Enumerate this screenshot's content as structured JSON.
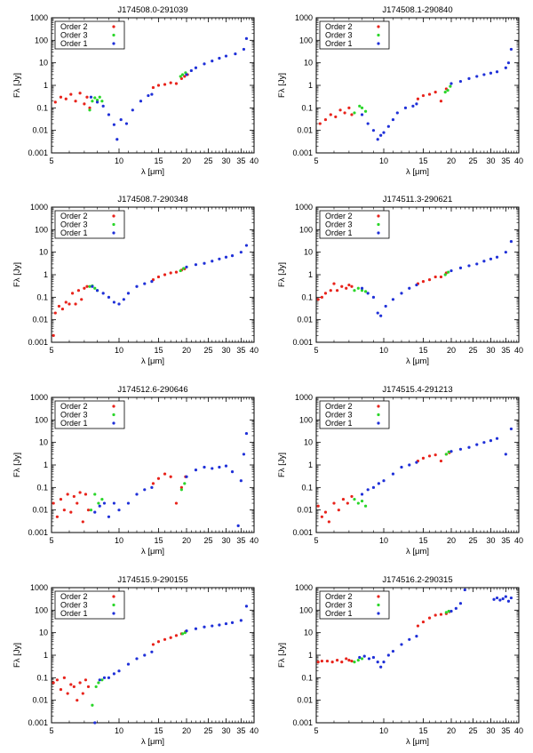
{
  "figure": {
    "legend_labels": [
      "Order 2",
      "Order 3",
      "Order 1"
    ],
    "legend_colors": [
      "#e8231b",
      "#2ad62a",
      "#1f30d8"
    ],
    "xlabel": "λ [μm]",
    "ylabel": "Fλ [Jy]",
    "x_ticks": [
      5,
      10,
      15,
      20,
      25,
      30,
      35,
      40
    ],
    "y_ticks": [
      "0.001",
      "0.01",
      "0.1",
      "1",
      "10",
      "100",
      "1000"
    ],
    "xscale": "log",
    "yscale": "log",
    "xlim": [
      5,
      40
    ],
    "ylim": [
      0.001,
      1000
    ]
  },
  "chart_data": [
    {
      "type": "scatter",
      "title": "J174508.0-291039",
      "series": [
        {
          "name": "Order 2",
          "color": "#e8231b",
          "x": [
            5.2,
            5.5,
            5.8,
            6.1,
            6.4,
            6.7,
            7.0,
            7.2,
            7.4,
            14.2,
            15.0,
            16.0,
            17.0,
            18.0,
            19.0,
            19.6,
            20.2
          ],
          "y": [
            0.18,
            0.3,
            0.25,
            0.4,
            0.2,
            0.45,
            0.15,
            0.3,
            0.1,
            0.8,
            1.0,
            1.1,
            1.3,
            1.2,
            2.0,
            2.5,
            3.0
          ]
        },
        {
          "name": "Order 3",
          "color": "#2ad62a",
          "x": [
            7.4,
            7.6,
            7.8,
            8.0,
            8.2,
            8.4,
            18.8,
            19.2,
            19.8
          ],
          "y": [
            0.08,
            0.2,
            0.28,
            0.22,
            0.3,
            0.2,
            2.5,
            3.0,
            3.6
          ]
        },
        {
          "name": "Order 1",
          "color": "#1f30d8",
          "x": [
            7.5,
            8.0,
            8.5,
            9.0,
            9.5,
            9.8,
            10.2,
            10.8,
            11.5,
            12.5,
            13.5,
            14.0,
            20.0,
            21.0,
            22.0,
            24.0,
            26.0,
            28.0,
            30.0,
            33.0,
            36.0,
            37.0
          ],
          "y": [
            0.3,
            0.18,
            0.12,
            0.05,
            0.018,
            0.004,
            0.03,
            0.02,
            0.08,
            0.2,
            0.35,
            0.4,
            3.0,
            4.5,
            6,
            9,
            12,
            16,
            20,
            25,
            40,
            120
          ]
        }
      ]
    },
    {
      "type": "scatter",
      "title": "J174508.1-290840",
      "series": [
        {
          "name": "Order 2",
          "color": "#e8231b",
          "x": [
            5.2,
            5.5,
            5.8,
            6.1,
            6.4,
            6.7,
            7.0,
            7.2,
            14.2,
            15.0,
            16.0,
            17.0,
            18.0,
            19.0
          ],
          "y": [
            0.02,
            0.03,
            0.05,
            0.04,
            0.08,
            0.06,
            0.1,
            0.05,
            0.25,
            0.35,
            0.4,
            0.5,
            0.2,
            0.7
          ]
        },
        {
          "name": "Order 3",
          "color": "#2ad62a",
          "x": [
            7.4,
            7.8,
            8.0,
            8.3,
            18.8,
            19.3,
            19.8
          ],
          "y": [
            0.06,
            0.12,
            0.1,
            0.07,
            0.5,
            0.6,
            0.9
          ]
        },
        {
          "name": "Order 1",
          "color": "#1f30d8",
          "x": [
            8.0,
            8.5,
            9.0,
            9.4,
            9.7,
            10.0,
            10.5,
            11.0,
            11.5,
            12.5,
            13.5,
            14.0,
            20.0,
            22.0,
            24.0,
            26.0,
            28.0,
            30.0,
            32.0,
            35.0,
            36.0,
            37.0
          ],
          "y": [
            0.05,
            0.02,
            0.01,
            0.004,
            0.006,
            0.008,
            0.015,
            0.03,
            0.06,
            0.1,
            0.12,
            0.15,
            1.2,
            1.5,
            2,
            2.5,
            3,
            3.5,
            4,
            6,
            10,
            40
          ]
        }
      ]
    },
    {
      "type": "scatter",
      "title": "J174508.7-290348",
      "series": [
        {
          "name": "Order 2",
          "color": "#e8231b",
          "x": [
            5.1,
            5.2,
            5.4,
            5.6,
            5.8,
            6.0,
            6.2,
            6.4,
            6.6,
            6.8,
            7.0,
            7.2,
            14.2,
            15.0,
            16.0,
            17.0,
            18.0,
            19.0,
            19.6
          ],
          "y": [
            0.002,
            0.02,
            0.04,
            0.03,
            0.06,
            0.05,
            0.15,
            0.05,
            0.2,
            0.08,
            0.25,
            0.3,
            0.6,
            0.8,
            1.0,
            1.2,
            1.3,
            1.6,
            1.8
          ]
        },
        {
          "name": "Order 3",
          "color": "#2ad62a",
          "x": [
            7.4,
            7.6,
            7.8,
            8.0,
            18.8,
            19.4
          ],
          "y": [
            0.3,
            0.32,
            0.25,
            0.2,
            1.5,
            1.9
          ]
        },
        {
          "name": "Order 1",
          "color": "#1f30d8",
          "x": [
            7.6,
            8.0,
            8.5,
            9.0,
            9.5,
            10.0,
            10.5,
            11.0,
            12.0,
            13.0,
            14.0,
            20.0,
            22.0,
            24.0,
            26.0,
            28.0,
            30.0,
            32.0,
            35.0,
            37.0
          ],
          "y": [
            0.3,
            0.2,
            0.15,
            0.1,
            0.06,
            0.05,
            0.08,
            0.15,
            0.3,
            0.4,
            0.5,
            2.2,
            2.8,
            3.2,
            4,
            5,
            6,
            7,
            10,
            20
          ]
        }
      ]
    },
    {
      "type": "scatter",
      "title": "J174511.3-290621",
      "series": [
        {
          "name": "Order 2",
          "color": "#e8231b",
          "x": [
            5.1,
            5.3,
            5.5,
            5.8,
            6.0,
            6.2,
            6.5,
            6.8,
            7.0,
            7.2,
            14.2,
            15.0,
            16.0,
            17.0,
            18.0,
            19.0
          ],
          "y": [
            0.08,
            0.1,
            0.15,
            0.2,
            0.4,
            0.2,
            0.3,
            0.25,
            0.35,
            0.3,
            0.4,
            0.5,
            0.6,
            0.8,
            0.8,
            1.2
          ]
        },
        {
          "name": "Order 3",
          "color": "#2ad62a",
          "x": [
            7.4,
            7.7,
            8.0,
            8.3,
            18.8,
            19.4
          ],
          "y": [
            0.2,
            0.25,
            0.2,
            0.18,
            1.0,
            1.3
          ]
        },
        {
          "name": "Order 1",
          "color": "#1f30d8",
          "x": [
            8.0,
            8.5,
            9.0,
            9.4,
            9.7,
            10.2,
            11.0,
            12.0,
            13.0,
            14.0,
            20.0,
            22.0,
            24.0,
            26.0,
            28.0,
            30.0,
            32.0,
            35.0,
            37.0
          ],
          "y": [
            0.25,
            0.15,
            0.1,
            0.02,
            0.015,
            0.04,
            0.08,
            0.15,
            0.25,
            0.35,
            1.5,
            2.0,
            2.5,
            3,
            4,
            5,
            6,
            10,
            30
          ]
        }
      ]
    },
    {
      "type": "scatter",
      "title": "J174512.6-290646",
      "series": [
        {
          "name": "Order 2",
          "color": "#e8231b",
          "x": [
            5.1,
            5.3,
            5.5,
            5.7,
            5.9,
            6.1,
            6.3,
            6.5,
            6.7,
            6.9,
            7.1,
            7.3,
            14.2,
            15.0,
            16.0,
            17.0,
            18.0,
            19.0,
            19.8
          ],
          "y": [
            0.02,
            0.005,
            0.03,
            0.01,
            0.05,
            0.008,
            0.04,
            0.02,
            0.06,
            0.003,
            0.05,
            0.01,
            0.15,
            0.25,
            0.4,
            0.3,
            0.02,
            0.1,
            0.3
          ]
        },
        {
          "name": "Order 3",
          "color": "#2ad62a",
          "x": [
            7.5,
            7.8,
            8.1,
            8.4,
            19.0,
            19.6
          ],
          "y": [
            0.01,
            0.05,
            0.02,
            0.03,
            0.08,
            0.15
          ]
        },
        {
          "name": "Order 1",
          "color": "#1f30d8",
          "x": [
            7.8,
            8.2,
            8.6,
            9.0,
            9.5,
            10.0,
            11.0,
            12.0,
            13.0,
            14.0,
            20.0,
            22.0,
            24.0,
            26.0,
            28.0,
            30.0,
            32.0,
            34.0,
            35.0,
            36.0,
            37.0
          ],
          "y": [
            0.008,
            0.015,
            0.02,
            0.005,
            0.02,
            0.01,
            0.02,
            0.05,
            0.08,
            0.1,
            0.3,
            0.6,
            0.8,
            0.7,
            0.8,
            0.9,
            0.5,
            0.002,
            0.2,
            3,
            25
          ]
        }
      ]
    },
    {
      "type": "scatter",
      "title": "J174515.4-291213",
      "series": [
        {
          "name": "Order 2",
          "color": "#e8231b",
          "x": [
            5.1,
            5.3,
            5.5,
            5.7,
            6.0,
            6.3,
            6.6,
            6.9,
            7.2,
            14.2,
            15.0,
            16.0,
            17.0,
            18.0,
            19.0,
            19.6
          ],
          "y": [
            0.015,
            0.005,
            0.008,
            0.003,
            0.02,
            0.01,
            0.03,
            0.02,
            0.04,
            1.5,
            2.0,
            2.5,
            2.8,
            1.5,
            3.0,
            3.5
          ]
        },
        {
          "name": "Order 3",
          "color": "#2ad62a",
          "x": [
            7.4,
            7.7,
            8.0,
            8.3,
            19.0,
            19.5
          ],
          "y": [
            0.03,
            0.02,
            0.025,
            0.015,
            3.0,
            3.8
          ]
        },
        {
          "name": "Order 1",
          "color": "#1f30d8",
          "x": [
            8.0,
            8.5,
            9.0,
            9.5,
            10.0,
            11.0,
            12.0,
            13.0,
            14.0,
            20.0,
            22.0,
            24.0,
            26.0,
            28.0,
            30.0,
            32.0,
            35.0,
            37.0
          ],
          "y": [
            0.05,
            0.08,
            0.1,
            0.15,
            0.2,
            0.4,
            0.8,
            1.0,
            1.3,
            4,
            5,
            6,
            8,
            10,
            12,
            15,
            3,
            40
          ]
        }
      ]
    },
    {
      "type": "scatter",
      "title": "J174515.9-290155",
      "series": [
        {
          "name": "Order 2",
          "color": "#e8231b",
          "x": [
            5.1,
            5.3,
            5.5,
            5.7,
            5.9,
            6.1,
            6.3,
            6.5,
            6.7,
            6.9,
            7.1,
            7.3,
            14.2,
            15.0,
            16.0,
            17.0,
            18.0,
            19.0,
            19.8
          ],
          "y": [
            0.06,
            0.08,
            0.03,
            0.1,
            0.02,
            0.05,
            0.04,
            0.01,
            0.06,
            0.02,
            0.08,
            0.04,
            3.0,
            4.0,
            5.0,
            6.0,
            7.5,
            9,
            11
          ]
        },
        {
          "name": "Order 3",
          "color": "#2ad62a",
          "x": [
            7.6,
            7.9,
            8.1,
            8.4,
            19.2,
            19.7
          ],
          "y": [
            0.006,
            0.04,
            0.06,
            0.08,
            9,
            10
          ]
        },
        {
          "name": "Order 1",
          "color": "#1f30d8",
          "x": [
            7.8,
            8.2,
            8.6,
            9.0,
            9.5,
            10.0,
            11.0,
            12.0,
            13.0,
            14.0,
            20.0,
            22.0,
            24.0,
            26.0,
            28.0,
            30.0,
            32.0,
            35.0,
            37.0
          ],
          "y": [
            0.001,
            0.08,
            0.1,
            0.1,
            0.15,
            0.2,
            0.4,
            0.7,
            1.0,
            1.4,
            12,
            15,
            18,
            20,
            22,
            25,
            28,
            35,
            150
          ]
        }
      ]
    },
    {
      "type": "scatter",
      "title": "J174516.2-290315",
      "series": [
        {
          "name": "Order 2",
          "color": "#e8231b",
          "x": [
            5.1,
            5.3,
            5.6,
            5.9,
            6.2,
            6.5,
            6.8,
            7.0,
            7.2,
            14.2,
            15.0,
            16.0,
            17.0,
            18.0,
            19.0,
            19.6
          ],
          "y": [
            0.5,
            0.55,
            0.55,
            0.5,
            0.6,
            0.5,
            0.7,
            0.6,
            0.55,
            20,
            30,
            45,
            60,
            65,
            70,
            85
          ]
        },
        {
          "name": "Order 3",
          "color": "#2ad62a",
          "x": [
            7.4,
            7.7,
            8.0,
            19.0,
            19.5
          ],
          "y": [
            0.5,
            0.6,
            0.7,
            80,
            90
          ]
        },
        {
          "name": "Order 1",
          "color": "#1f30d8",
          "x": [
            7.8,
            8.2,
            8.6,
            9.0,
            9.4,
            9.7,
            10.0,
            10.5,
            11.0,
            12.0,
            13.0,
            14.0,
            20.0,
            21.0,
            22.0,
            23.0,
            31.0,
            32.0,
            33.0,
            34.0,
            35.0,
            36.0,
            37.0
          ],
          "y": [
            0.8,
            0.9,
            0.7,
            0.8,
            0.5,
            0.3,
            0.5,
            1.0,
            1.5,
            3,
            5,
            7,
            90,
            120,
            200,
            800,
            300,
            350,
            280,
            320,
            400,
            250,
            350
          ]
        }
      ]
    }
  ]
}
